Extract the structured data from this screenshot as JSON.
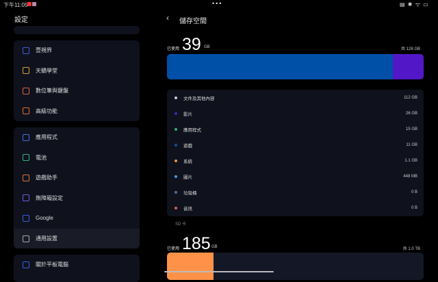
{
  "status_bar": {
    "time": "下午11:05"
  },
  "sidebar": {
    "title": "設定",
    "group1": [
      {
        "label": "壹視界",
        "icon": "view-icon",
        "color": "#3f5bd9"
      },
      {
        "label": "天驕學堂",
        "icon": "learning-icon",
        "color": "#e0a030"
      },
      {
        "label": "數位筆與鍵盤",
        "icon": "pen-icon",
        "color": "#e06040"
      },
      {
        "label": "高級功能",
        "icon": "advanced-icon",
        "color": "#e07030"
      }
    ],
    "group2": [
      {
        "label": "應用程式",
        "icon": "apps-icon",
        "color": "#4a6be0"
      },
      {
        "label": "電池",
        "icon": "battery-icon",
        "color": "#2fb880"
      },
      {
        "label": "遊戲助手",
        "icon": "gamepad-icon",
        "color": "#e07040"
      },
      {
        "label": "無障礙設定",
        "icon": "accessibility-icon",
        "color": "#7a55e0"
      },
      {
        "label": "Google",
        "icon": "google-icon",
        "color": "#3a5be0"
      },
      {
        "label": "通用設置",
        "icon": "gear-icon",
        "color": "#aaaaaa"
      }
    ],
    "group3": [
      {
        "label": "關於平板電腦",
        "icon": "tablet-icon",
        "color": "#3a5be0"
      }
    ]
  },
  "main": {
    "title": "儲存空間",
    "internal": {
      "used_label": "已使用",
      "used_value": "39",
      "used_unit": "GB",
      "total": "共 128 GB",
      "segments": [
        {
          "color": "#0050a8",
          "percent": 88
        },
        {
          "color": "#5218c8",
          "percent": 12
        }
      ]
    },
    "categories": [
      {
        "label": "文件及其他內容",
        "value": "112 GB",
        "color": "#c8cde0"
      },
      {
        "label": "影片",
        "value": "26 GB",
        "color": "#4a20c0"
      },
      {
        "label": "應用程式",
        "value": "15 GB",
        "color": "#30b070"
      },
      {
        "label": "遊戲",
        "value": "11 GB",
        "color": "#1c4c9c"
      },
      {
        "label": "系統",
        "value": "1.1 GB",
        "color": "#f09050"
      },
      {
        "label": "圖片",
        "value": "448 MB",
        "color": "#40a0e8"
      },
      {
        "label": "垃圾桶",
        "value": "0 B",
        "color": "#5070a0"
      },
      {
        "label": "音訊",
        "value": "0 B",
        "color": "#e06050"
      }
    ],
    "sd": {
      "section_label": "SD 卡",
      "used_label": "已使用",
      "used_value": "185",
      "used_unit": "GB",
      "total": "共 1.0 TB",
      "fill_color": "#ff9248",
      "percent": 18
    }
  }
}
